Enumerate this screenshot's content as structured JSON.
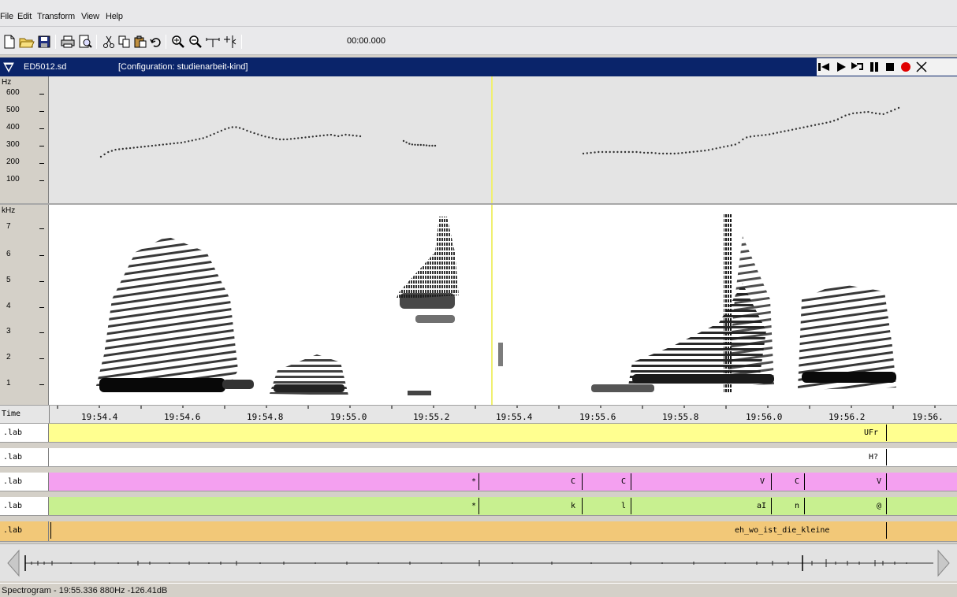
{
  "menu": [
    "File",
    "Edit",
    "Transform",
    "View",
    "Help"
  ],
  "toolbar": {
    "icons": [
      "new-file-icon",
      "open-folder-icon",
      "save-icon",
      "print-icon",
      "print-preview-icon",
      "cut-icon",
      "copy-icon",
      "paste-icon",
      "undo-icon",
      "zoom-in-icon",
      "zoom-out-icon",
      "zoom-selection-icon",
      "zoom-fit-icon"
    ],
    "time_display": "00:00.000"
  },
  "window": {
    "file": "ED5012.sd",
    "configuration": "[Configuration: studienarbeit-kind]"
  },
  "pitch_panel": {
    "unit": "Hz",
    "ticks": [
      "600",
      "500",
      "400",
      "300",
      "200",
      "100"
    ]
  },
  "spectrogram_panel": {
    "unit": "kHz",
    "ticks": [
      "7",
      "6",
      "5",
      "4",
      "3",
      "2",
      "1"
    ]
  },
  "time_axis": {
    "name": "Time",
    "ticks": [
      "19:54.4",
      "19:54.6",
      "19:54.8",
      "19:55.0",
      "19:55.2",
      "19:55.4",
      "19:55.6",
      "19:55.8",
      "19:56.0",
      "19:56.2",
      "19:56."
    ]
  },
  "tiers": [
    {
      "name": ".lab",
      "color": "#ffff90",
      "labels": [
        "UFr"
      ]
    },
    {
      "name": ".lab",
      "color": "#ffffff",
      "labels": [
        "H?"
      ]
    },
    {
      "name": ".lab",
      "color": "#f4a0f0",
      "labels": [
        "*",
        "C",
        "C",
        "V",
        "C",
        "V"
      ]
    },
    {
      "name": ".lab",
      "color": "#c8f090",
      "labels": [
        "*",
        "k",
        "l",
        "aI",
        "n",
        "@"
      ]
    },
    {
      "name": ".lab",
      "color": "#f2c878",
      "labels": [
        "eh_wo_ist_die_kleine"
      ]
    }
  ],
  "status": "Spectrogram - 19:55.336 880Hz -126.41dB"
}
